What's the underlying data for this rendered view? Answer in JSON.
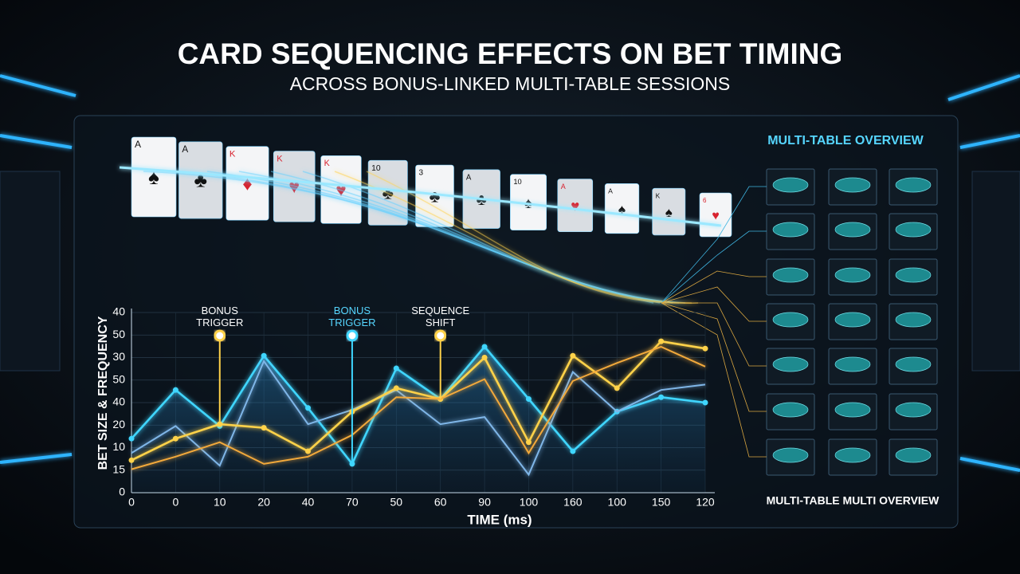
{
  "header": {
    "title": "CARD SEQUENCING EFFECTS ON BET TIMING",
    "subtitle": "ACROSS BONUS-LINKED MULTI-TABLE SESSIONS"
  },
  "cards": [
    {
      "rank": "A",
      "suit": "♠"
    },
    {
      "rank": "A",
      "suit": "♣"
    },
    {
      "rank": "K",
      "suit": "♦"
    },
    {
      "rank": "K",
      "suit": "♥"
    },
    {
      "rank": "K",
      "suit": "♥"
    },
    {
      "rank": "10",
      "suit": "♣"
    },
    {
      "rank": "3",
      "suit": "♣"
    },
    {
      "rank": "A",
      "suit": "♣"
    },
    {
      "rank": "10",
      "suit": "♠"
    },
    {
      "rank": "A",
      "suit": "♥"
    },
    {
      "rank": "A",
      "suit": "♠"
    },
    {
      "rank": "K",
      "suit": "♠"
    },
    {
      "rank": "6",
      "suit": "♥"
    }
  ],
  "chart_data": {
    "type": "line",
    "y_label": "BET SIZE & FREQUENCY",
    "x_label": "TIME (ms)",
    "categories": [
      "0",
      "0",
      "10",
      "20",
      "40",
      "70",
      "50",
      "60",
      "90",
      "100",
      "160",
      "100",
      "150",
      "120"
    ],
    "y_axis_labels": [
      "40",
      "50",
      "30",
      "50",
      "40",
      "20",
      "10",
      "15",
      "0"
    ],
    "ylim": [
      0,
      100
    ],
    "series": [
      {
        "name": "Bright cyan",
        "color": "#3fd6ff",
        "values": [
          30,
          57,
          37,
          76,
          47,
          16,
          69,
          52,
          81,
          52,
          23,
          45,
          53,
          50
        ]
      },
      {
        "name": "Light blue",
        "color": "#7fb6e8",
        "values": [
          22,
          37,
          15,
          73,
          38,
          46,
          57,
          38,
          42,
          10,
          67,
          45,
          57,
          60
        ]
      },
      {
        "name": "Yellow",
        "color": "#ffd24a",
        "values": [
          18,
          30,
          38,
          36,
          23,
          45,
          58,
          52,
          75,
          28,
          76,
          58,
          84,
          80
        ]
      },
      {
        "name": "Orange",
        "color": "#f2a93b",
        "values": [
          13,
          20,
          28,
          16,
          20,
          32,
          53,
          52,
          63,
          22,
          62,
          72,
          81,
          70
        ]
      }
    ],
    "annotations": [
      {
        "text": "BONUS TRIGGER",
        "category": 2,
        "series": 2
      },
      {
        "text": "BONUS TRIGGER",
        "category": 5,
        "series": 0
      },
      {
        "text": "SEQUENCE SHIFT",
        "category": 7,
        "series": 2
      }
    ]
  },
  "panel": {
    "title": "MULTI-TABLE OVERVIEW",
    "footer": "MULTI-TABLE MULTI OVERVIEW"
  }
}
